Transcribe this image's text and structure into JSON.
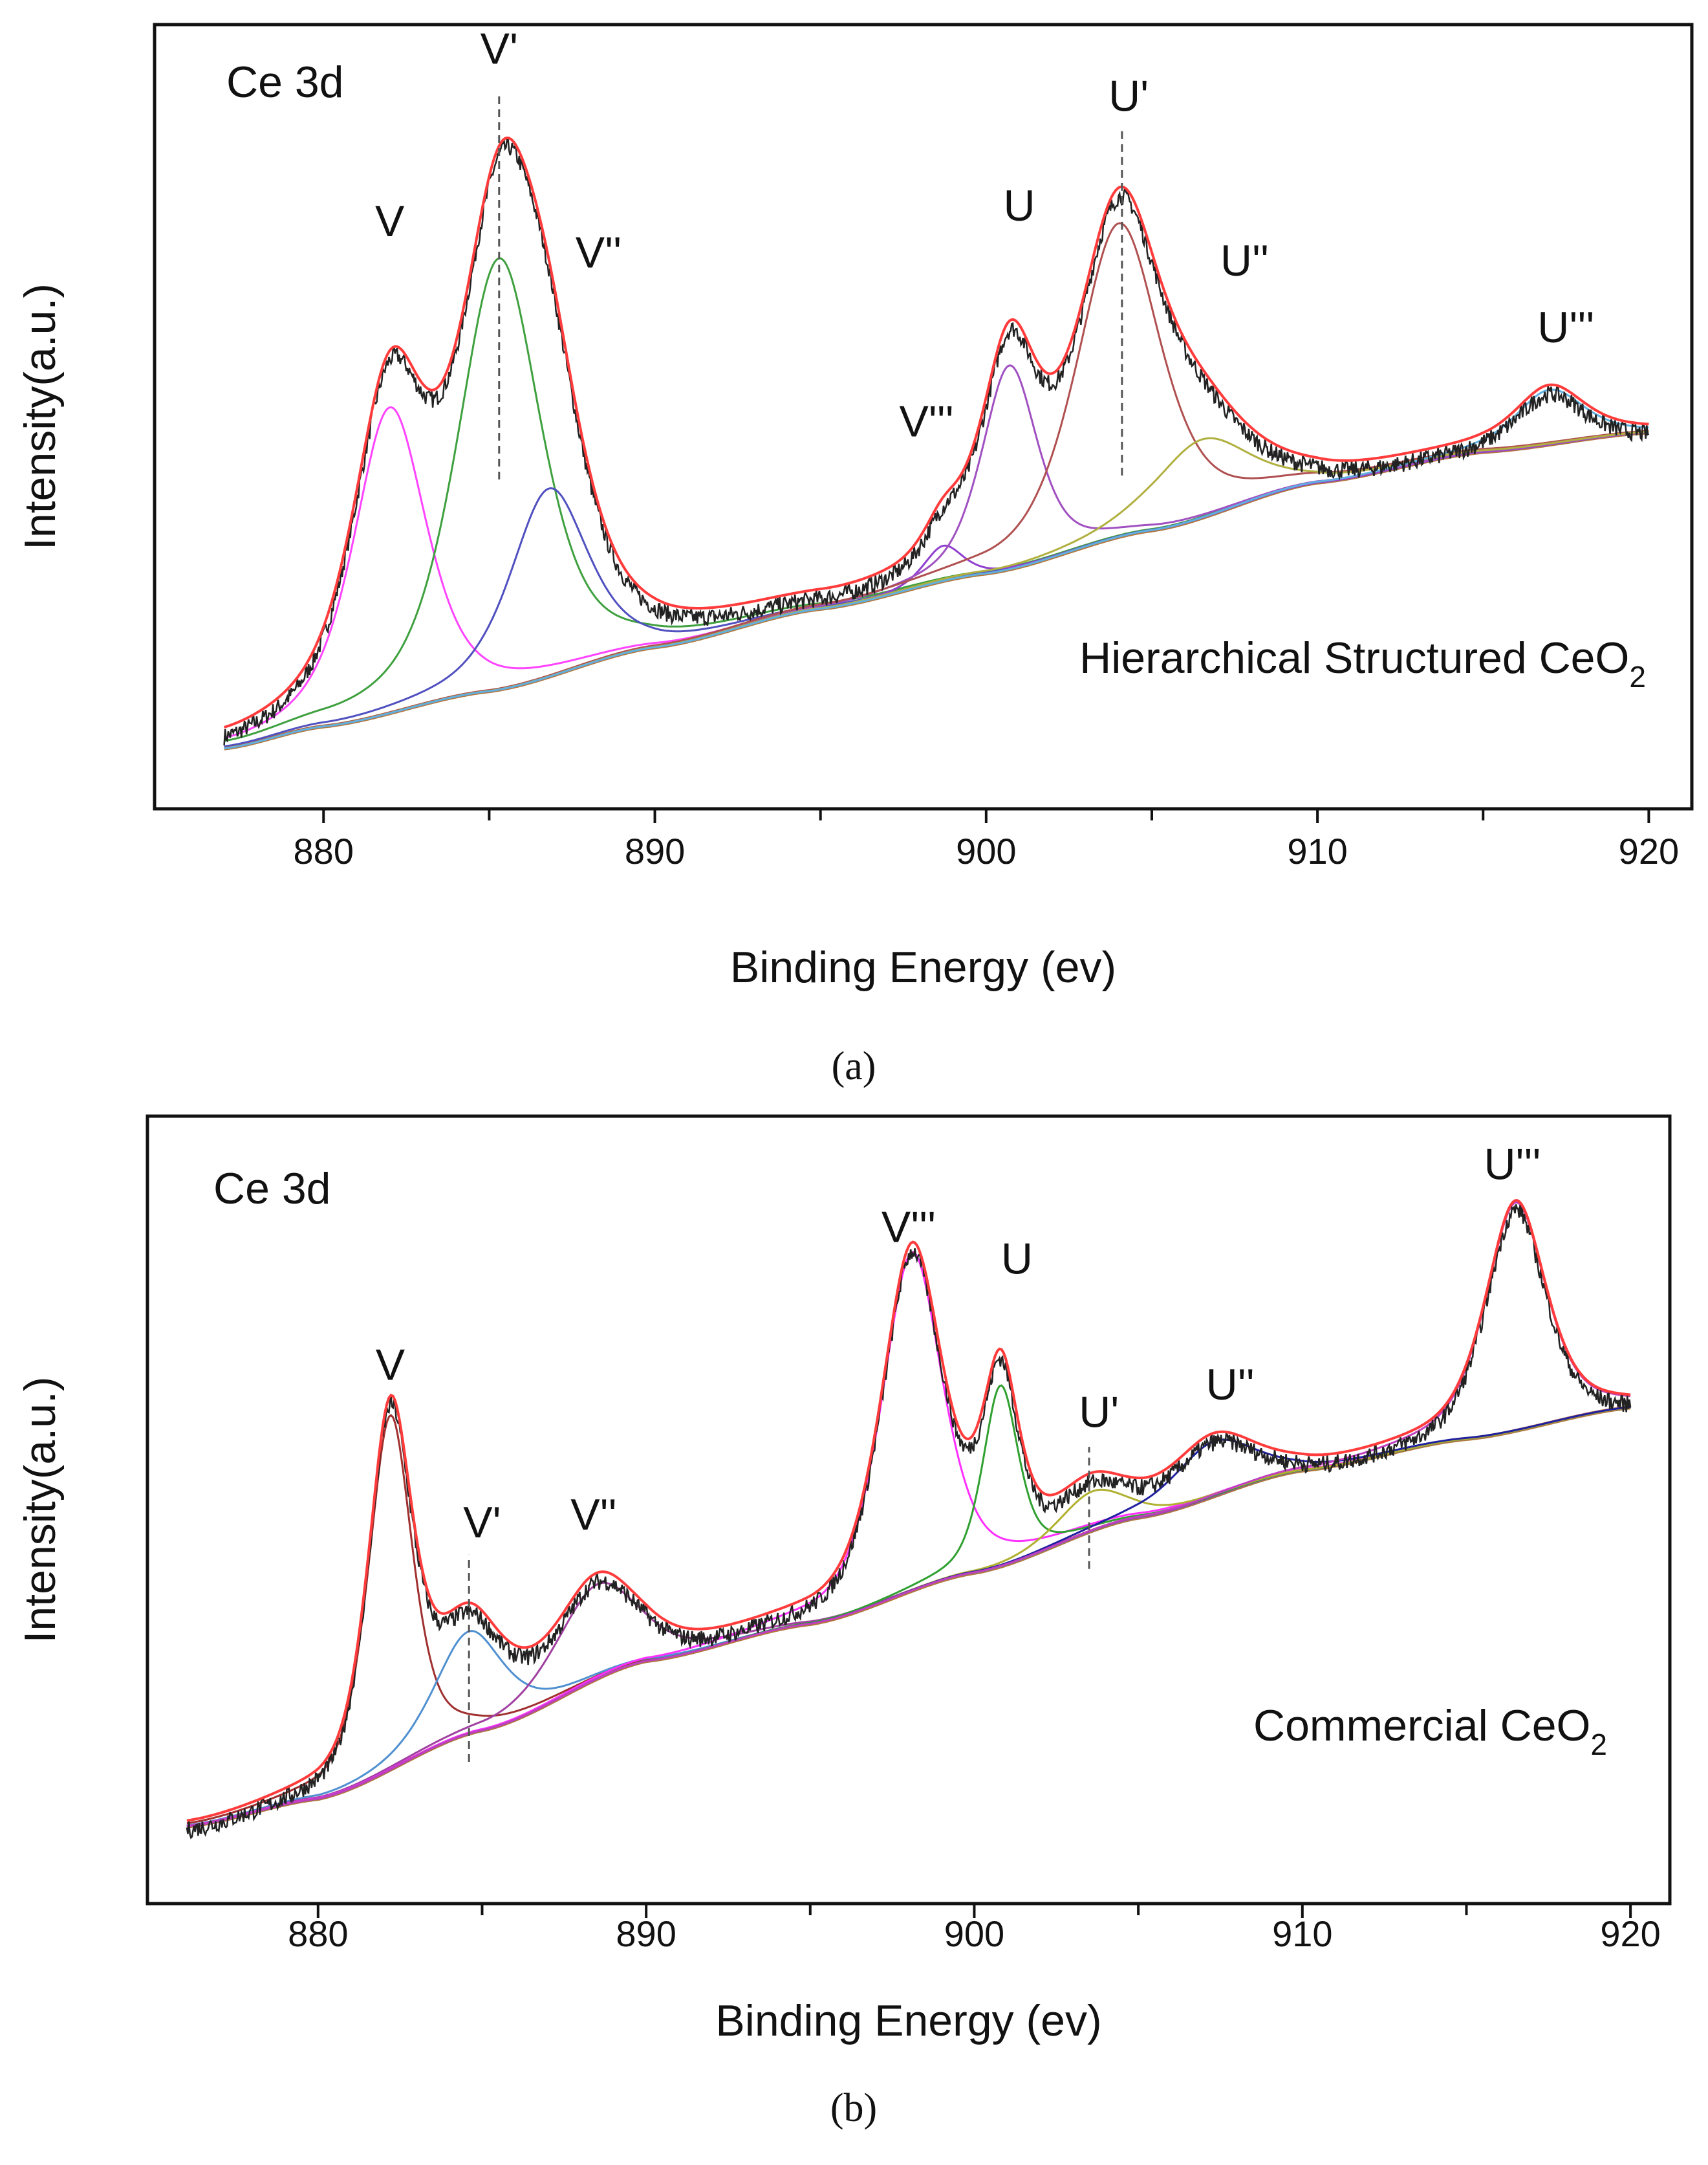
{
  "chart_data": [
    {
      "type": "line",
      "panel_caption": "(a)",
      "title": "Ce 3d",
      "sample_label": "Hierarchical Structured CeO",
      "sample_subscript": "2",
      "xlabel": "Binding Energy (ev)",
      "ylabel": "Intensity(a.u.)",
      "xlim": [
        874.9,
        921.3
      ],
      "ylim": [
        0,
        100
      ],
      "xticks": [
        880,
        890,
        900,
        910,
        920
      ],
      "minor_xticks": [
        885,
        895,
        905,
        915
      ],
      "grid": false,
      "envelope_color": "#ff3b3b",
      "raw_color": "#222222",
      "background_color": "#b4783a",
      "background": [
        [
          877,
          7.7
        ],
        [
          880,
          10.5
        ],
        [
          885,
          15
        ],
        [
          890,
          20.6
        ],
        [
          895,
          25.5
        ],
        [
          900,
          30
        ],
        [
          905,
          35.5
        ],
        [
          910,
          41.6
        ],
        [
          915,
          45.5
        ],
        [
          920,
          48
        ]
      ],
      "components": [
        {
          "name": "V",
          "center": 882.0,
          "height": 39,
          "fwhm": 2.6,
          "color": "#ff44ff"
        },
        {
          "name": "V'",
          "center": 885.3,
          "height": 55,
          "fwhm": 3.0,
          "color": "#3fa03f"
        },
        {
          "name": "V''",
          "center": 886.8,
          "height": 24,
          "fwhm": 2.8,
          "color": "#5050c0"
        },
        {
          "name": "V'''",
          "center": 898.7,
          "height": 4.5,
          "fwhm": 1.4,
          "color": "#9040d0"
        },
        {
          "name": "U",
          "center": 900.7,
          "height": 26,
          "fwhm": 2.0,
          "color": "#a050c0"
        },
        {
          "name": "U'",
          "center": 904.0,
          "height": 40,
          "fwhm": 3.0,
          "color": "#b05050"
        },
        {
          "name": "U''",
          "center": 906.5,
          "height": 10,
          "fwhm": 3.5,
          "color": "#b0b040"
        },
        {
          "name": "U'''",
          "center": 917.0,
          "height": 7,
          "fwhm": 2.5,
          "color": "#60b0e0"
        }
      ],
      "peak_labels": [
        {
          "text": "V",
          "x": 882.0,
          "y": 73
        },
        {
          "text": "V'",
          "x": 885.3,
          "y": 95
        },
        {
          "text": "V''",
          "x": 888.3,
          "y": 69
        },
        {
          "text": "V'''",
          "x": 898.2,
          "y": 47.5
        },
        {
          "text": "U",
          "x": 901.0,
          "y": 75
        },
        {
          "text": "U'",
          "x": 904.3,
          "y": 89
        },
        {
          "text": "U''",
          "x": 907.8,
          "y": 68
        },
        {
          "text": "U'''",
          "x": 917.5,
          "y": 59.5
        }
      ],
      "dashed_markers": [
        {
          "x": 885.3,
          "y": [
            42,
            91
          ]
        },
        {
          "x": 904.1,
          "y": [
            42.5,
            87
          ]
        }
      ]
    },
    {
      "type": "line",
      "panel_caption": "(b)",
      "title": "Ce 3d",
      "sample_label": "Commercial CeO",
      "sample_subscript": "2",
      "xlabel": "Binding Energy (ev)",
      "ylabel": "Intensity(a.u.)",
      "xlim": [
        874.8,
        921.2
      ],
      "ylim": [
        0,
        100
      ],
      "xticks": [
        880,
        890,
        900,
        910,
        920
      ],
      "minor_xticks": [
        885,
        895,
        905,
        915
      ],
      "grid": false,
      "envelope_color": "#ff3b3b",
      "raw_color": "#222222",
      "background_color": "#b4783a",
      "background": [
        [
          876,
          9.8
        ],
        [
          880,
          13.3
        ],
        [
          885,
          22
        ],
        [
          890,
          30.8
        ],
        [
          895,
          35.5
        ],
        [
          900,
          42
        ],
        [
          905,
          49
        ],
        [
          910,
          55
        ],
        [
          915,
          59
        ],
        [
          920,
          63
        ]
      ],
      "components": [
        {
          "name": "V",
          "center": 882.2,
          "height": 45,
          "fwhm": 1.6,
          "color": "#a03030"
        },
        {
          "name": "V'",
          "center": 884.6,
          "height": 13,
          "fwhm": 2.5,
          "color": "#5090d0"
        },
        {
          "name": "V''",
          "center": 888.5,
          "height": 12,
          "fwhm": 3.0,
          "color": "#a040a0"
        },
        {
          "name": "V'''",
          "center": 898.1,
          "height": 43,
          "fwhm": 2.2,
          "color": "#ff30ff"
        },
        {
          "name": "U",
          "center": 900.8,
          "height": 23,
          "fwhm": 1.3,
          "color": "#30a030"
        },
        {
          "name": "U'",
          "center": 903.6,
          "height": 5,
          "fwhm": 2.5,
          "color": "#b0b030"
        },
        {
          "name": "U''",
          "center": 907.3,
          "height": 7,
          "fwhm": 3.0,
          "color": "#2020a0"
        },
        {
          "name": "U'''",
          "center": 916.5,
          "height": 29,
          "fwhm": 2.2,
          "color": "#c040c0"
        }
      ],
      "peak_labels": [
        {
          "text": "V",
          "x": 882.2,
          "y": 66.5
        },
        {
          "text": "V'",
          "x": 885.0,
          "y": 46.5
        },
        {
          "text": "V''",
          "x": 888.4,
          "y": 47.5
        },
        {
          "text": "V'''",
          "x": 898.0,
          "y": 84
        },
        {
          "text": "U",
          "x": 901.3,
          "y": 80
        },
        {
          "text": "U'",
          "x": 903.8,
          "y": 60.5
        },
        {
          "text": "U''",
          "x": 907.8,
          "y": 64
        },
        {
          "text": "U'''",
          "x": 916.4,
          "y": 92
        }
      ],
      "dashed_markers": [
        {
          "x": 884.6,
          "y": [
            18,
            44.3
          ]
        },
        {
          "x": 903.5,
          "y": [
            42.5,
            58
          ]
        }
      ]
    }
  ]
}
